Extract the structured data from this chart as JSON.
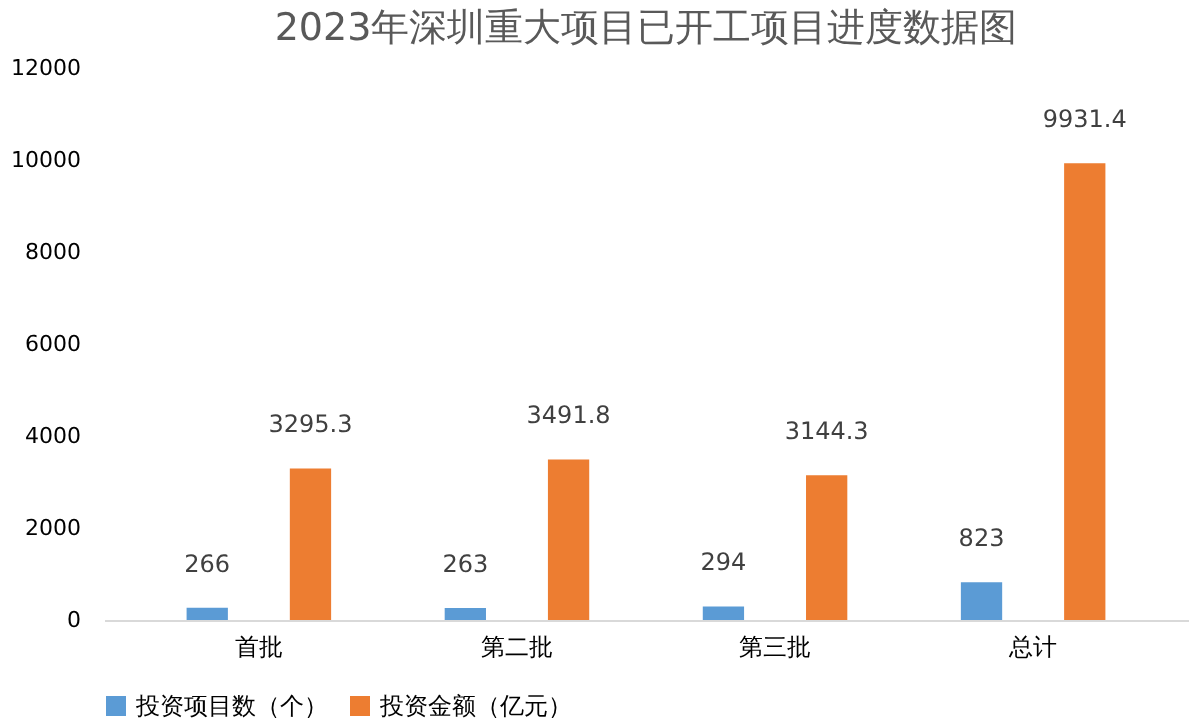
{
  "chart_data": {
    "type": "bar",
    "title": "2023年深圳重大项目已开工项目进度数据图",
    "categories": [
      "首批",
      "第二批",
      "第三批",
      "总计"
    ],
    "series": [
      {
        "name": "投资项目数（个）",
        "color": "#5b9bd5",
        "values": [
          266,
          263,
          294,
          823
        ]
      },
      {
        "name": "投资金额（亿元）",
        "color": "#ed7d31",
        "values": [
          3295.3,
          3491.8,
          3144.3,
          9931.4
        ]
      }
    ],
    "ylim": [
      0,
      12000
    ],
    "yticks": [
      0,
      2000,
      4000,
      6000,
      8000,
      10000,
      12000
    ],
    "grid": false,
    "legend": "bottom",
    "data_labels": true
  }
}
